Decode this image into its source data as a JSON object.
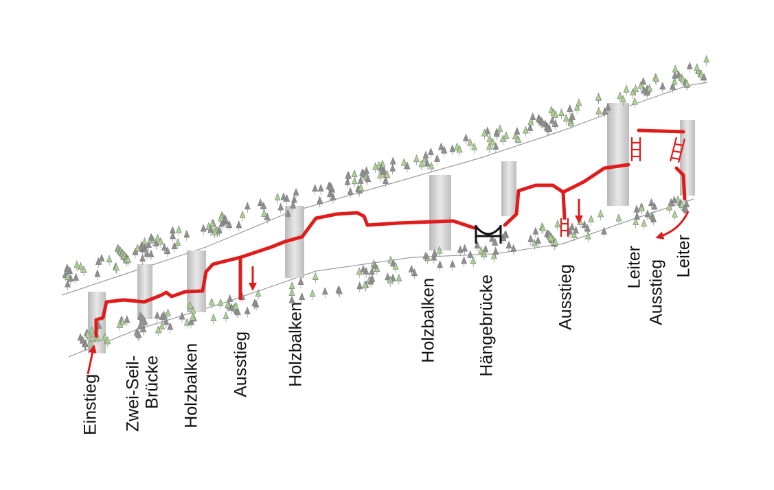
{
  "labels": [
    {
      "lines": [
        "Einstieg"
      ]
    },
    {
      "lines": [
        "Zwei-Seil-",
        "Brücke"
      ]
    },
    {
      "lines": [
        "Holzbalken"
      ]
    },
    {
      "lines": [
        "Ausstieg"
      ]
    },
    {
      "lines": [
        "Holzbalken"
      ]
    },
    {
      "lines": [
        "Holzbalken"
      ]
    },
    {
      "lines": [
        "Hängebrücke"
      ]
    },
    {
      "lines": [
        "Ausstieg"
      ]
    },
    {
      "lines": [
        "Leiter"
      ]
    },
    {
      "lines": [
        "Ausstieg"
      ]
    },
    {
      "lines": [
        "Leiter"
      ]
    }
  ]
}
